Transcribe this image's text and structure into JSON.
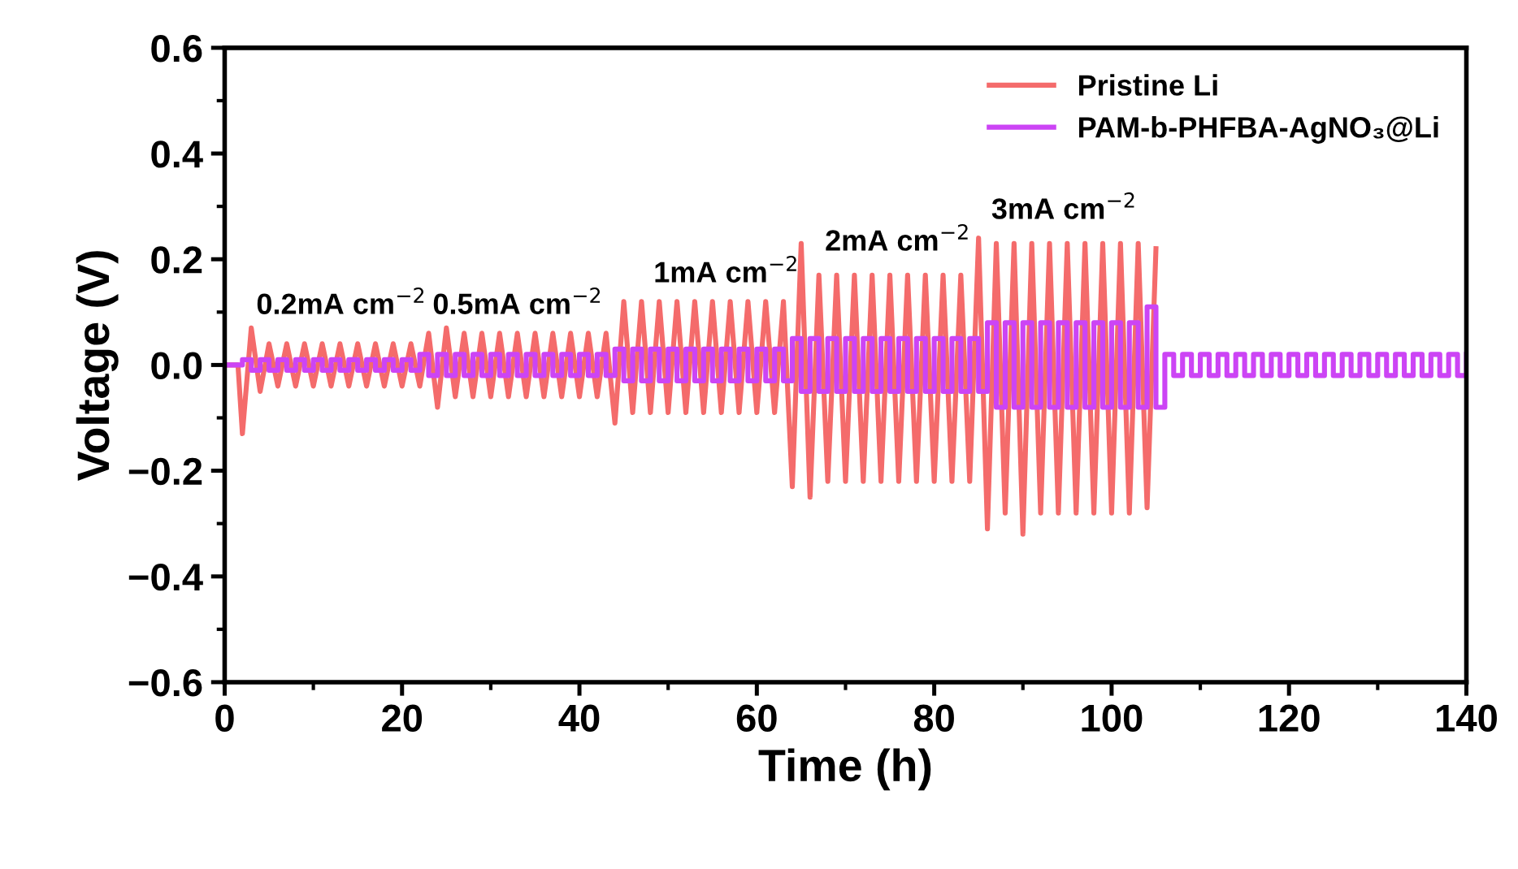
{
  "chart_data": {
    "type": "line",
    "xlabel": "Time (h)",
    "ylabel": "Voltage (V)",
    "xlim": [
      0,
      140
    ],
    "xticks": [
      0,
      20,
      40,
      60,
      80,
      100,
      120,
      140
    ],
    "ylim": [
      -0.6,
      0.6
    ],
    "yticks": [
      {
        "value": -0.6,
        "label": "−0.6"
      },
      {
        "value": -0.4,
        "label": "−0.4"
      },
      {
        "value": -0.2,
        "label": "−0.2"
      },
      {
        "value": 0,
        "label": "0.0"
      },
      {
        "value": 0.2,
        "label": "0.2"
      },
      {
        "value": 0.4,
        "label": "0.4"
      },
      {
        "value": 0.6,
        "label": "0.6"
      }
    ],
    "grid": false,
    "legend": "top right",
    "marker": "none",
    "line_style": "solid",
    "series": [
      {
        "name": "Pristine Li",
        "color": "#f46b6b",
        "x": [
          0,
          1.5,
          2,
          3,
          4,
          5,
          6,
          7,
          8,
          9,
          10,
          11,
          12,
          13,
          14,
          15,
          16,
          17,
          18,
          19,
          20,
          21,
          22,
          23,
          24,
          25,
          26,
          27,
          28,
          29,
          30,
          31,
          32,
          33,
          34,
          35,
          36,
          37,
          38,
          39,
          40,
          41,
          42,
          43,
          44,
          45,
          46,
          47,
          48,
          49,
          50,
          51,
          52,
          53,
          54,
          55,
          56,
          57,
          58,
          59,
          60,
          61,
          62,
          63,
          64,
          65,
          66,
          67,
          68,
          69,
          70,
          71,
          72,
          73,
          74,
          75,
          76,
          77,
          78,
          79,
          80,
          81,
          82,
          83,
          84,
          85,
          86,
          87,
          88,
          89,
          90,
          91,
          92,
          93,
          94,
          95,
          96,
          97,
          98,
          99,
          100,
          101,
          102,
          103,
          104,
          105
        ],
        "values": [
          0,
          0,
          -0.13,
          0.07,
          -0.05,
          0.04,
          -0.04,
          0.04,
          -0.04,
          0.04,
          -0.04,
          0.04,
          -0.04,
          0.04,
          -0.04,
          0.04,
          -0.04,
          0.04,
          -0.04,
          0.04,
          -0.04,
          0.04,
          -0.04,
          0.06,
          -0.08,
          0.07,
          -0.06,
          0.06,
          -0.06,
          0.06,
          -0.06,
          0.06,
          -0.06,
          0.06,
          -0.06,
          0.06,
          -0.06,
          0.06,
          -0.06,
          0.06,
          -0.06,
          0.06,
          -0.06,
          0.06,
          -0.11,
          0.12,
          -0.09,
          0.12,
          -0.09,
          0.12,
          -0.09,
          0.12,
          -0.09,
          0.12,
          -0.09,
          0.12,
          -0.09,
          0.12,
          -0.09,
          0.12,
          -0.09,
          0.12,
          -0.09,
          0.12,
          -0.23,
          0.23,
          -0.25,
          0.17,
          -0.22,
          0.17,
          -0.22,
          0.17,
          -0.22,
          0.17,
          -0.22,
          0.17,
          -0.22,
          0.17,
          -0.22,
          0.17,
          -0.22,
          0.17,
          -0.22,
          0.17,
          -0.22,
          0.24,
          -0.31,
          0.23,
          -0.28,
          0.23,
          -0.32,
          0.23,
          -0.28,
          0.23,
          -0.28,
          0.23,
          -0.28,
          0.23,
          -0.28,
          0.23,
          -0.28,
          0.23,
          -0.28,
          0.23,
          -0.27,
          0.22
        ]
      },
      {
        "name": "PAM-b-PHFBA-AgNO₃@Li",
        "color": "#cc44f5",
        "type": "step",
        "x": [
          0,
          1,
          2,
          3,
          4,
          5,
          6,
          7,
          8,
          9,
          10,
          11,
          12,
          13,
          14,
          15,
          16,
          17,
          18,
          19,
          20,
          21,
          22,
          23,
          24,
          25,
          26,
          27,
          28,
          29,
          30,
          31,
          32,
          33,
          34,
          35,
          36,
          37,
          38,
          39,
          40,
          41,
          42,
          43,
          44,
          45,
          46,
          47,
          48,
          49,
          50,
          51,
          52,
          53,
          54,
          55,
          56,
          57,
          58,
          59,
          60,
          61,
          62,
          63,
          64,
          65,
          66,
          67,
          68,
          69,
          70,
          71,
          72,
          73,
          74,
          75,
          76,
          77,
          78,
          79,
          80,
          81,
          82,
          83,
          84,
          85,
          86,
          87,
          88,
          89,
          90,
          91,
          92,
          93,
          94,
          95,
          96,
          97,
          98,
          99,
          100,
          101,
          102,
          103,
          104,
          105,
          106,
          107,
          108,
          109,
          110,
          111,
          112,
          113,
          114,
          115,
          116,
          117,
          118,
          119,
          120,
          121,
          122,
          123,
          124,
          125,
          126,
          127,
          128,
          129,
          130,
          131,
          132,
          133,
          134,
          135,
          136,
          137,
          138,
          139,
          140
        ],
        "values": [
          0,
          0,
          0.01,
          -0.01,
          0.01,
          -0.01,
          0.01,
          -0.01,
          0.01,
          -0.01,
          0.01,
          -0.01,
          0.01,
          -0.01,
          0.01,
          -0.01,
          0.01,
          -0.01,
          0.01,
          -0.01,
          0.01,
          -0.01,
          0.02,
          -0.02,
          0.02,
          -0.02,
          0.02,
          -0.02,
          0.02,
          -0.02,
          0.02,
          -0.02,
          0.02,
          -0.02,
          0.02,
          -0.02,
          0.02,
          -0.02,
          0.02,
          -0.02,
          0.02,
          -0.02,
          0.02,
          -0.02,
          0.03,
          -0.03,
          0.03,
          -0.03,
          0.03,
          -0.03,
          0.03,
          -0.03,
          0.03,
          -0.03,
          0.03,
          -0.03,
          0.03,
          -0.03,
          0.03,
          -0.03,
          0.03,
          -0.03,
          0.03,
          -0.03,
          0.05,
          -0.05,
          0.05,
          -0.05,
          0.05,
          -0.05,
          0.05,
          -0.05,
          0.05,
          -0.05,
          0.05,
          -0.05,
          0.05,
          -0.05,
          0.05,
          -0.05,
          0.05,
          -0.05,
          0.05,
          -0.05,
          0.05,
          -0.05,
          0.08,
          -0.08,
          0.08,
          -0.08,
          0.08,
          -0.08,
          0.08,
          -0.08,
          0.08,
          -0.08,
          0.08,
          -0.08,
          0.08,
          -0.08,
          0.08,
          -0.08,
          0.08,
          -0.08,
          0.11,
          -0.08,
          0.02,
          -0.02,
          0.02,
          -0.02,
          0.02,
          -0.02,
          0.02,
          -0.02,
          0.02,
          -0.02,
          0.02,
          -0.02,
          0.02,
          -0.02,
          0.02,
          -0.02,
          0.02,
          -0.02,
          0.02,
          -0.02,
          0.02,
          -0.02,
          0.02,
          -0.02,
          0.02,
          -0.02,
          0.02,
          -0.02,
          0.02,
          -0.02,
          0.02,
          -0.02,
          0.02,
          -0.02,
          0.02
        ]
      }
    ],
    "annotations": [
      "0.2mA cm$^{−2}$",
      "0.5mA cm$^{−2}$",
      "1mA cm$^{−2}$",
      "2mA cm$^{−2}$",
      "3mA cm$^{−2}$"
    ]
  }
}
